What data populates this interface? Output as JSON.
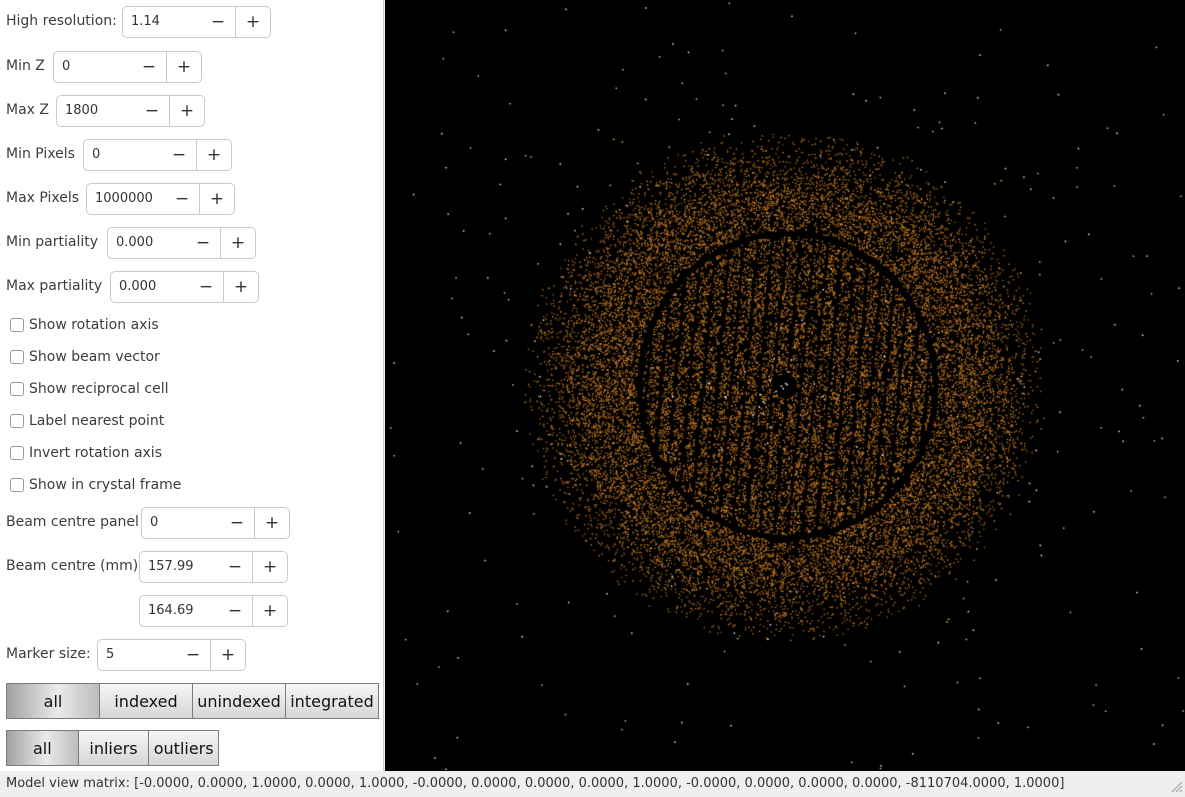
{
  "controls": {
    "high_resolution": {
      "label": "High resolution:",
      "value": "1.14"
    },
    "min_z": {
      "label": "Min Z",
      "value": "0"
    },
    "max_z": {
      "label": "Max Z",
      "value": "1800"
    },
    "min_pixels": {
      "label": "Min Pixels",
      "value": "0"
    },
    "max_pixels": {
      "label": "Max Pixels",
      "value": "1000000"
    },
    "min_partiality": {
      "label": "Min partiality",
      "value": "0.000"
    },
    "max_partiality": {
      "label": "Max partiality",
      "value": "0.000"
    },
    "beam_centre_panel": {
      "label": "Beam centre panel",
      "value": "0"
    },
    "beam_centre_mm": {
      "label": "Beam centre (mm)",
      "value_x": "157.99",
      "value_y": "164.69"
    },
    "marker_size": {
      "label": "Marker size:",
      "value": "5"
    },
    "minus_glyph": "−",
    "plus_glyph": "+"
  },
  "checkboxes": [
    {
      "label": "Show rotation axis",
      "checked": false
    },
    {
      "label": "Show beam vector",
      "checked": false
    },
    {
      "label": "Show reciprocal cell",
      "checked": false
    },
    {
      "label": "Label nearest point",
      "checked": false
    },
    {
      "label": "Invert rotation axis",
      "checked": false
    },
    {
      "label": "Show in crystal frame",
      "checked": false
    }
  ],
  "filter_group_1": {
    "options": [
      "all",
      "indexed",
      "unindexed",
      "integrated"
    ],
    "selected": "all"
  },
  "filter_group_2": {
    "options": [
      "all",
      "inliers",
      "outliers"
    ],
    "selected": "all"
  },
  "status": {
    "model_view_matrix": "Model view matrix: [-0.0000, 0.0000, 1.0000, 0.0000, 1.0000, -0.0000, 0.0000, 0.0000, 0.0000, 1.0000, -0.0000, 0.0000, 0.0000, 0.0000, -8110704.0000, 1.0000]"
  },
  "colors": {
    "viewport_bg": "#000000",
    "spot_color": "#e8a33a",
    "spot_highlight": "#ffffff"
  }
}
